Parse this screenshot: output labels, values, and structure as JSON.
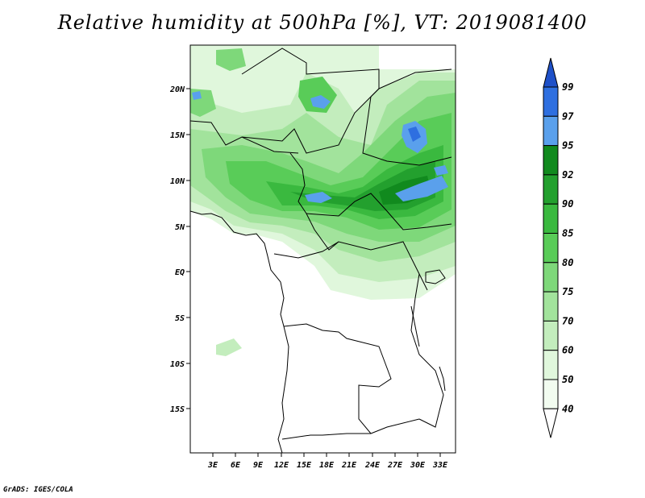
{
  "title": "Relative humidity at 500hPa [%], VT: 2019081400",
  "credit": "GrADS: IGES/COLA",
  "map": {
    "lat_labels": [
      "20N",
      "15N",
      "10N",
      "5N",
      "EQ",
      "5S",
      "10S",
      "15S"
    ],
    "lon_labels": [
      "3E",
      "6E",
      "9E",
      "12E",
      "15E",
      "18E",
      "21E",
      "24E",
      "27E",
      "30E",
      "33E"
    ]
  },
  "colorbar": {
    "labels": [
      "99",
      "97",
      "95",
      "92",
      "90",
      "85",
      "80",
      "75",
      "70",
      "60",
      "50",
      "40"
    ],
    "colors": [
      "#1e50c8",
      "#2e6fe0",
      "#5aa0ec",
      "#118a1e",
      "#23a02e",
      "#3ab93f",
      "#59cc58",
      "#7ed87a",
      "#a2e39c",
      "#c3edbd",
      "#e0f7dc",
      "#f2fcf0"
    ]
  }
}
